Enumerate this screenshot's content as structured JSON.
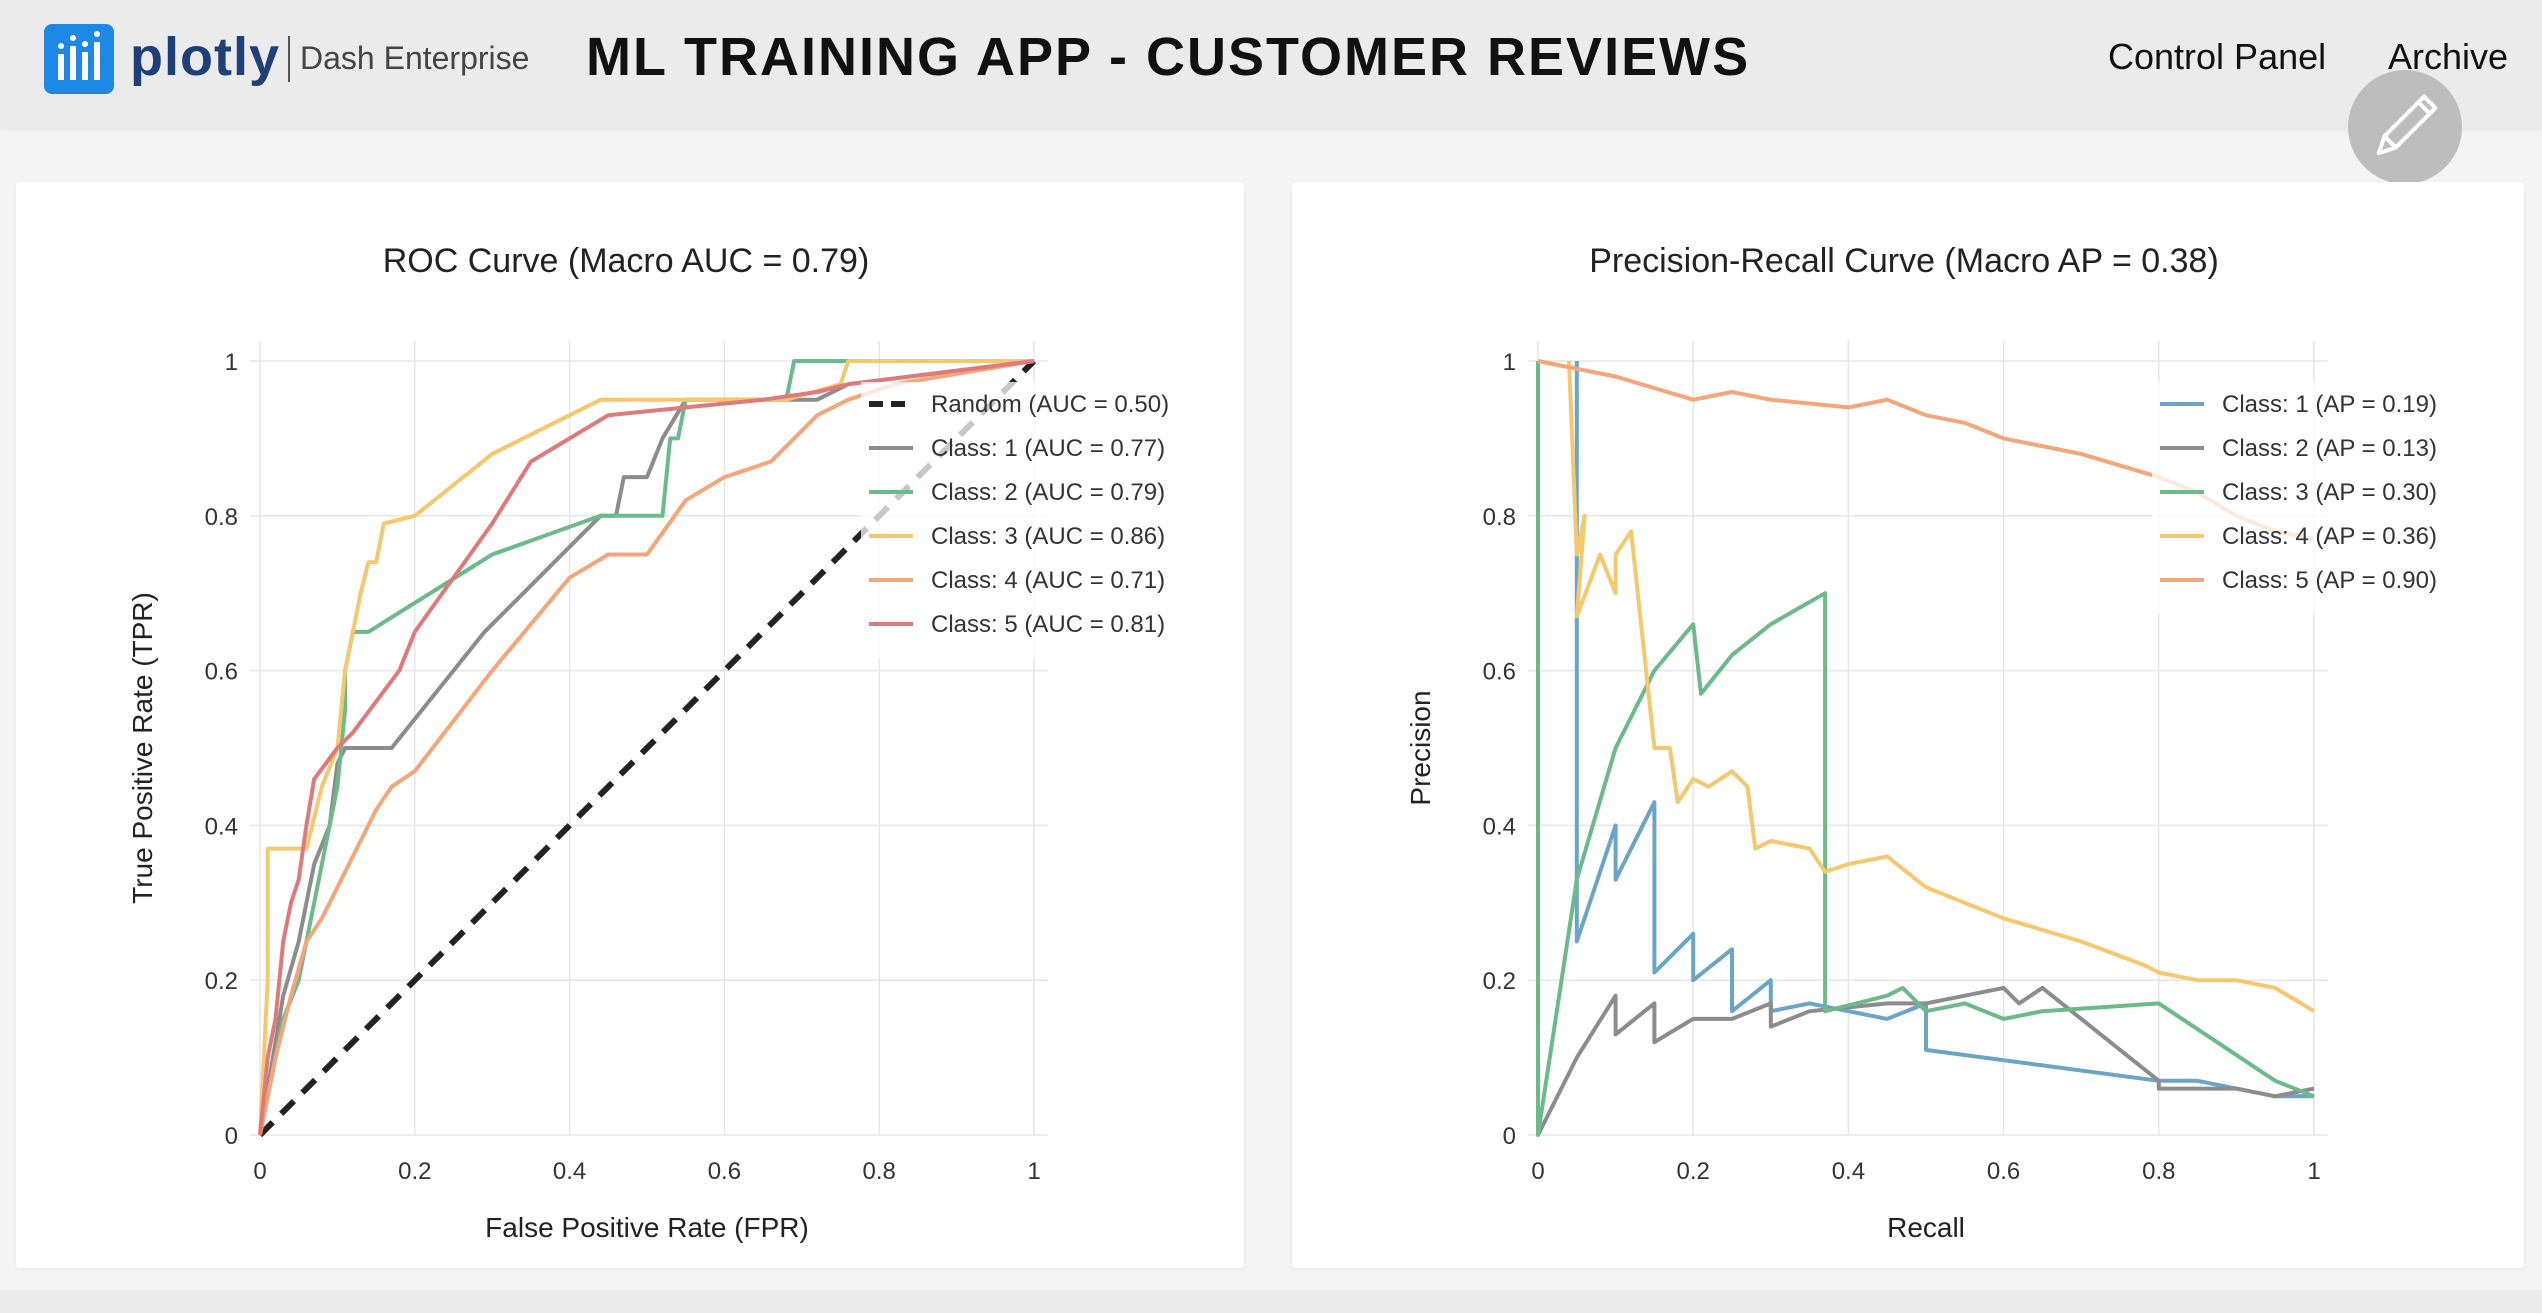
{
  "header": {
    "logo_word": "plotly",
    "logo_sub": "Dash Enterprise",
    "title": "ML TRAINING APP - CUSTOMER REVIEWS",
    "nav": [
      "Control Panel",
      "Archive"
    ],
    "edit_icon": "pencil-icon",
    "logo_icon": "plotly-bars-icon"
  },
  "colors": {
    "blue": "#6aa5c8",
    "gray": "#8c8c8c",
    "green": "#6cba8a",
    "yellow": "#f5c86e",
    "orange": "#f2a679",
    "red": "#e07a7a",
    "dash": "#222222"
  },
  "chart_data": [
    {
      "type": "line",
      "title": "ROC Curve (Macro AUC = 0.79)",
      "xlabel": "False Positive Rate (FPR)",
      "ylabel": "True Positive Rate (TPR)",
      "xlim": [
        0,
        1
      ],
      "ylim": [
        0,
        1
      ],
      "xticks": [
        "0",
        "0.2",
        "0.4",
        "0.6",
        "0.8",
        "1"
      ],
      "yticks": [
        "0",
        "0.2",
        "0.4",
        "0.6",
        "0.8",
        "1"
      ],
      "grid": true,
      "legend_position": "top-right",
      "series": [
        {
          "name": "Random (AUC = 0.50)",
          "color_key": "dash",
          "dashed": true,
          "points": [
            [
              0,
              0
            ],
            [
              1,
              1
            ]
          ]
        },
        {
          "name": "Class: 1 (AUC = 0.77)",
          "color_key": "gray",
          "points": [
            [
              0,
              0
            ],
            [
              0.02,
              0.12
            ],
            [
              0.03,
              0.18
            ],
            [
              0.05,
              0.25
            ],
            [
              0.06,
              0.3
            ],
            [
              0.07,
              0.35
            ],
            [
              0.09,
              0.4
            ],
            [
              0.1,
              0.48
            ],
            [
              0.11,
              0.5
            ],
            [
              0.17,
              0.5
            ],
            [
              0.29,
              0.65
            ],
            [
              0.44,
              0.8
            ],
            [
              0.46,
              0.8
            ],
            [
              0.47,
              0.85
            ],
            [
              0.5,
              0.85
            ],
            [
              0.52,
              0.9
            ],
            [
              0.55,
              0.95
            ],
            [
              0.68,
              0.95
            ],
            [
              0.72,
              0.95
            ],
            [
              0.76,
              0.97
            ],
            [
              1,
              1
            ]
          ]
        },
        {
          "name": "Class: 2 (AUC = 0.79)",
          "color_key": "green",
          "points": [
            [
              0,
              0
            ],
            [
              0.01,
              0.05
            ],
            [
              0.02,
              0.1
            ],
            [
              0.03,
              0.15
            ],
            [
              0.05,
              0.2
            ],
            [
              0.06,
              0.25
            ],
            [
              0.07,
              0.3
            ],
            [
              0.08,
              0.35
            ],
            [
              0.09,
              0.4
            ],
            [
              0.1,
              0.45
            ],
            [
              0.11,
              0.55
            ],
            [
              0.11,
              0.6
            ],
            [
              0.12,
              0.65
            ],
            [
              0.14,
              0.65
            ],
            [
              0.3,
              0.75
            ],
            [
              0.44,
              0.8
            ],
            [
              0.52,
              0.8
            ],
            [
              0.53,
              0.9
            ],
            [
              0.54,
              0.9
            ],
            [
              0.55,
              0.95
            ],
            [
              0.68,
              0.95
            ],
            [
              0.69,
              1
            ],
            [
              0.75,
              1
            ],
            [
              0.76,
              1
            ],
            [
              1,
              1
            ]
          ]
        },
        {
          "name": "Class: 3 (AUC = 0.86)",
          "color_key": "yellow",
          "points": [
            [
              0,
              0
            ],
            [
              0.01,
              0.2
            ],
            [
              0.01,
              0.37
            ],
            [
              0.06,
              0.37
            ],
            [
              0.08,
              0.45
            ],
            [
              0.1,
              0.5
            ],
            [
              0.11,
              0.6
            ],
            [
              0.12,
              0.65
            ],
            [
              0.13,
              0.7
            ],
            [
              0.14,
              0.74
            ],
            [
              0.15,
              0.74
            ],
            [
              0.16,
              0.79
            ],
            [
              0.2,
              0.8
            ],
            [
              0.3,
              0.88
            ],
            [
              0.44,
              0.95
            ],
            [
              0.68,
              0.95
            ],
            [
              0.75,
              0.97
            ],
            [
              0.76,
              1
            ],
            [
              1,
              1
            ]
          ]
        },
        {
          "name": "Class: 4 (AUC = 0.71)",
          "color_key": "orange",
          "points": [
            [
              0,
              0
            ],
            [
              0.02,
              0.1
            ],
            [
              0.04,
              0.18
            ],
            [
              0.06,
              0.25
            ],
            [
              0.08,
              0.28
            ],
            [
              0.1,
              0.32
            ],
            [
              0.13,
              0.38
            ],
            [
              0.15,
              0.42
            ],
            [
              0.17,
              0.45
            ],
            [
              0.2,
              0.47
            ],
            [
              0.3,
              0.6
            ],
            [
              0.4,
              0.72
            ],
            [
              0.45,
              0.75
            ],
            [
              0.5,
              0.75
            ],
            [
              0.55,
              0.82
            ],
            [
              0.6,
              0.85
            ],
            [
              0.66,
              0.87
            ],
            [
              0.69,
              0.9
            ],
            [
              0.72,
              0.93
            ],
            [
              0.76,
              0.95
            ],
            [
              0.82,
              0.97
            ],
            [
              1,
              1
            ]
          ]
        },
        {
          "name": "Class: 5 (AUC = 0.81)",
          "color_key": "red",
          "points": [
            [
              0,
              0
            ],
            [
              0.01,
              0.1
            ],
            [
              0.02,
              0.15
            ],
            [
              0.03,
              0.25
            ],
            [
              0.04,
              0.3
            ],
            [
              0.05,
              0.33
            ],
            [
              0.06,
              0.4
            ],
            [
              0.07,
              0.46
            ],
            [
              0.1,
              0.5
            ],
            [
              0.12,
              0.52
            ],
            [
              0.18,
              0.6
            ],
            [
              0.2,
              0.65
            ],
            [
              0.25,
              0.72
            ],
            [
              0.3,
              0.79
            ],
            [
              0.35,
              0.87
            ],
            [
              0.4,
              0.9
            ],
            [
              0.45,
              0.93
            ],
            [
              0.55,
              0.94
            ],
            [
              0.65,
              0.95
            ],
            [
              0.72,
              0.96
            ],
            [
              0.76,
              0.97
            ],
            [
              1,
              1
            ]
          ]
        }
      ]
    },
    {
      "type": "line",
      "title": "Precision-Recall Curve (Macro AP = 0.38)",
      "xlabel": "Recall",
      "ylabel": "Precision",
      "xlim": [
        0,
        1
      ],
      "ylim": [
        0,
        1
      ],
      "xticks": [
        "0",
        "0.2",
        "0.4",
        "0.6",
        "0.8",
        "1"
      ],
      "yticks": [
        "0",
        "0.2",
        "0.4",
        "0.6",
        "0.8",
        "1"
      ],
      "grid": true,
      "legend_position": "top-right",
      "series": [
        {
          "name": "Class: 1 (AP = 0.19)",
          "color_key": "blue",
          "points": [
            [
              0.05,
              1
            ],
            [
              0.05,
              0.67
            ],
            [
              0.05,
              0.25
            ],
            [
              0.1,
              0.4
            ],
            [
              0.1,
              0.33
            ],
            [
              0.15,
              0.43
            ],
            [
              0.15,
              0.21
            ],
            [
              0.2,
              0.26
            ],
            [
              0.2,
              0.2
            ],
            [
              0.25,
              0.24
            ],
            [
              0.25,
              0.16
            ],
            [
              0.3,
              0.2
            ],
            [
              0.3,
              0.16
            ],
            [
              0.35,
              0.17
            ],
            [
              0.45,
              0.15
            ],
            [
              0.5,
              0.17
            ],
            [
              0.5,
              0.11
            ],
            [
              0.8,
              0.07
            ],
            [
              0.85,
              0.07
            ],
            [
              0.95,
              0.05
            ],
            [
              1,
              0.05
            ]
          ]
        },
        {
          "name": "Class: 2 (AP = 0.13)",
          "color_key": "gray",
          "points": [
            [
              0,
              0
            ],
            [
              0.05,
              0.1
            ],
            [
              0.1,
              0.18
            ],
            [
              0.1,
              0.13
            ],
            [
              0.15,
              0.17
            ],
            [
              0.15,
              0.12
            ],
            [
              0.2,
              0.15
            ],
            [
              0.25,
              0.15
            ],
            [
              0.3,
              0.17
            ],
            [
              0.3,
              0.14
            ],
            [
              0.35,
              0.16
            ],
            [
              0.45,
              0.17
            ],
            [
              0.5,
              0.17
            ],
            [
              0.55,
              0.18
            ],
            [
              0.6,
              0.19
            ],
            [
              0.62,
              0.17
            ],
            [
              0.65,
              0.19
            ],
            [
              0.8,
              0.07
            ],
            [
              0.8,
              0.06
            ],
            [
              0.9,
              0.06
            ],
            [
              0.95,
              0.05
            ],
            [
              1,
              0.06
            ]
          ]
        },
        {
          "name": "Class: 3 (AP = 0.30)",
          "color_key": "green",
          "points": [
            [
              0,
              1
            ],
            [
              0,
              0
            ],
            [
              0.05,
              0.33
            ],
            [
              0.1,
              0.5
            ],
            [
              0.15,
              0.6
            ],
            [
              0.2,
              0.66
            ],
            [
              0.21,
              0.57
            ],
            [
              0.25,
              0.62
            ],
            [
              0.3,
              0.66
            ],
            [
              0.37,
              0.7
            ],
            [
              0.37,
              0.16
            ],
            [
              0.45,
              0.18
            ],
            [
              0.47,
              0.19
            ],
            [
              0.5,
              0.16
            ],
            [
              0.55,
              0.17
            ],
            [
              0.6,
              0.15
            ],
            [
              0.65,
              0.16
            ],
            [
              0.8,
              0.17
            ],
            [
              0.95,
              0.07
            ],
            [
              1,
              0.05
            ]
          ]
        },
        {
          "name": "Class: 4 (AP = 0.36)",
          "color_key": "yellow",
          "points": [
            [
              0.04,
              1
            ],
            [
              0.05,
              0.75
            ],
            [
              0.06,
              0.8
            ],
            [
              0.05,
              0.67
            ],
            [
              0.08,
              0.75
            ],
            [
              0.1,
              0.7
            ],
            [
              0.1,
              0.75
            ],
            [
              0.12,
              0.78
            ],
            [
              0.15,
              0.5
            ],
            [
              0.17,
              0.5
            ],
            [
              0.18,
              0.43
            ],
            [
              0.2,
              0.46
            ],
            [
              0.22,
              0.45
            ],
            [
              0.25,
              0.47
            ],
            [
              0.27,
              0.45
            ],
            [
              0.28,
              0.37
            ],
            [
              0.3,
              0.38
            ],
            [
              0.35,
              0.37
            ],
            [
              0.37,
              0.34
            ],
            [
              0.4,
              0.35
            ],
            [
              0.45,
              0.36
            ],
            [
              0.5,
              0.32
            ],
            [
              0.6,
              0.28
            ],
            [
              0.7,
              0.25
            ],
            [
              0.78,
              0.22
            ],
            [
              0.8,
              0.21
            ],
            [
              0.85,
              0.2
            ],
            [
              0.9,
              0.2
            ],
            [
              0.95,
              0.19
            ],
            [
              1,
              0.16
            ]
          ]
        },
        {
          "name": "Class: 5 (AP = 0.90)",
          "color_key": "orange",
          "points": [
            [
              0,
              1
            ],
            [
              0.1,
              0.98
            ],
            [
              0.2,
              0.95
            ],
            [
              0.25,
              0.96
            ],
            [
              0.3,
              0.95
            ],
            [
              0.4,
              0.94
            ],
            [
              0.45,
              0.95
            ],
            [
              0.5,
              0.93
            ],
            [
              0.55,
              0.92
            ],
            [
              0.6,
              0.9
            ],
            [
              0.7,
              0.88
            ],
            [
              0.8,
              0.85
            ],
            [
              0.85,
              0.83
            ],
            [
              0.9,
              0.8
            ],
            [
              0.95,
              0.78
            ],
            [
              1,
              0.77
            ]
          ]
        }
      ]
    }
  ]
}
